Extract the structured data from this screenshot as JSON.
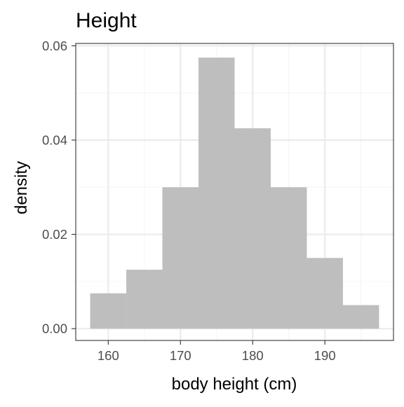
{
  "chart_data": {
    "type": "bar",
    "title": "Height",
    "xlabel": "body height (cm)",
    "ylabel": "density",
    "x_ticks": [
      "160",
      "170",
      "180",
      "190"
    ],
    "y_ticks": [
      "0.00",
      "0.02",
      "0.04",
      "0.06"
    ],
    "xlim": [
      155.5,
      199.5
    ],
    "ylim": [
      -0.0025,
      0.0605
    ],
    "grid": true,
    "bins": [
      {
        "start": 157.5,
        "end": 162.5,
        "density": 0.0075
      },
      {
        "start": 162.5,
        "end": 167.5,
        "density": 0.0125
      },
      {
        "start": 167.5,
        "end": 172.5,
        "density": 0.03
      },
      {
        "start": 172.5,
        "end": 177.5,
        "density": 0.0575
      },
      {
        "start": 177.5,
        "end": 182.5,
        "density": 0.0425
      },
      {
        "start": 182.5,
        "end": 187.5,
        "density": 0.03
      },
      {
        "start": 187.5,
        "end": 192.5,
        "density": 0.015
      },
      {
        "start": 192.5,
        "end": 197.5,
        "density": 0.005
      }
    ],
    "colors": {
      "bar_fill": "#bebebe",
      "panel_border": "#333333",
      "grid_major": "#ebebeb",
      "grid_minor": "#f5f5f5",
      "tick_text": "#4d4d4d"
    }
  }
}
